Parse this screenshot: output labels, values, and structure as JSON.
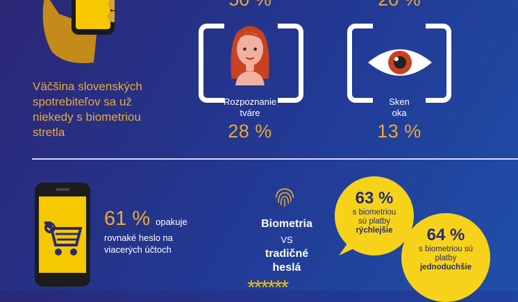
{
  "intro": {
    "text": "Väčšina slovenských spotrebiteľov sa už niekedy s biometriou stretla"
  },
  "biometrics": [
    {
      "caption_line1": "Rozpoznanie",
      "caption_line2": "tváre",
      "percent": "28 %",
      "icon": "woman-face-icon"
    },
    {
      "caption_line1": "Sken",
      "caption_line2": "oka",
      "percent": "13 %",
      "icon": "eye-icon"
    }
  ],
  "password_stat": {
    "percent": "61 %",
    "word": "opakuje",
    "text": "rovnaké heslo na viacerých účtoch"
  },
  "comparison": {
    "biometria": "Biometria",
    "vs": "VS",
    "traditional_line1": "tradičné",
    "traditional_line2": "heslá",
    "stars": "******"
  },
  "bubbles": [
    {
      "percent": "63 %",
      "line1": "s biometriou",
      "line2": "sú platby",
      "bold": "rýchlejšie"
    },
    {
      "percent": "64 %",
      "line1": "s biometriou sú",
      "line2": "platby",
      "bold": "jednoduchšie"
    }
  ],
  "colors": {
    "accent": "#e8a93a",
    "yellow": "#f7d21b",
    "background": "#223a95"
  }
}
